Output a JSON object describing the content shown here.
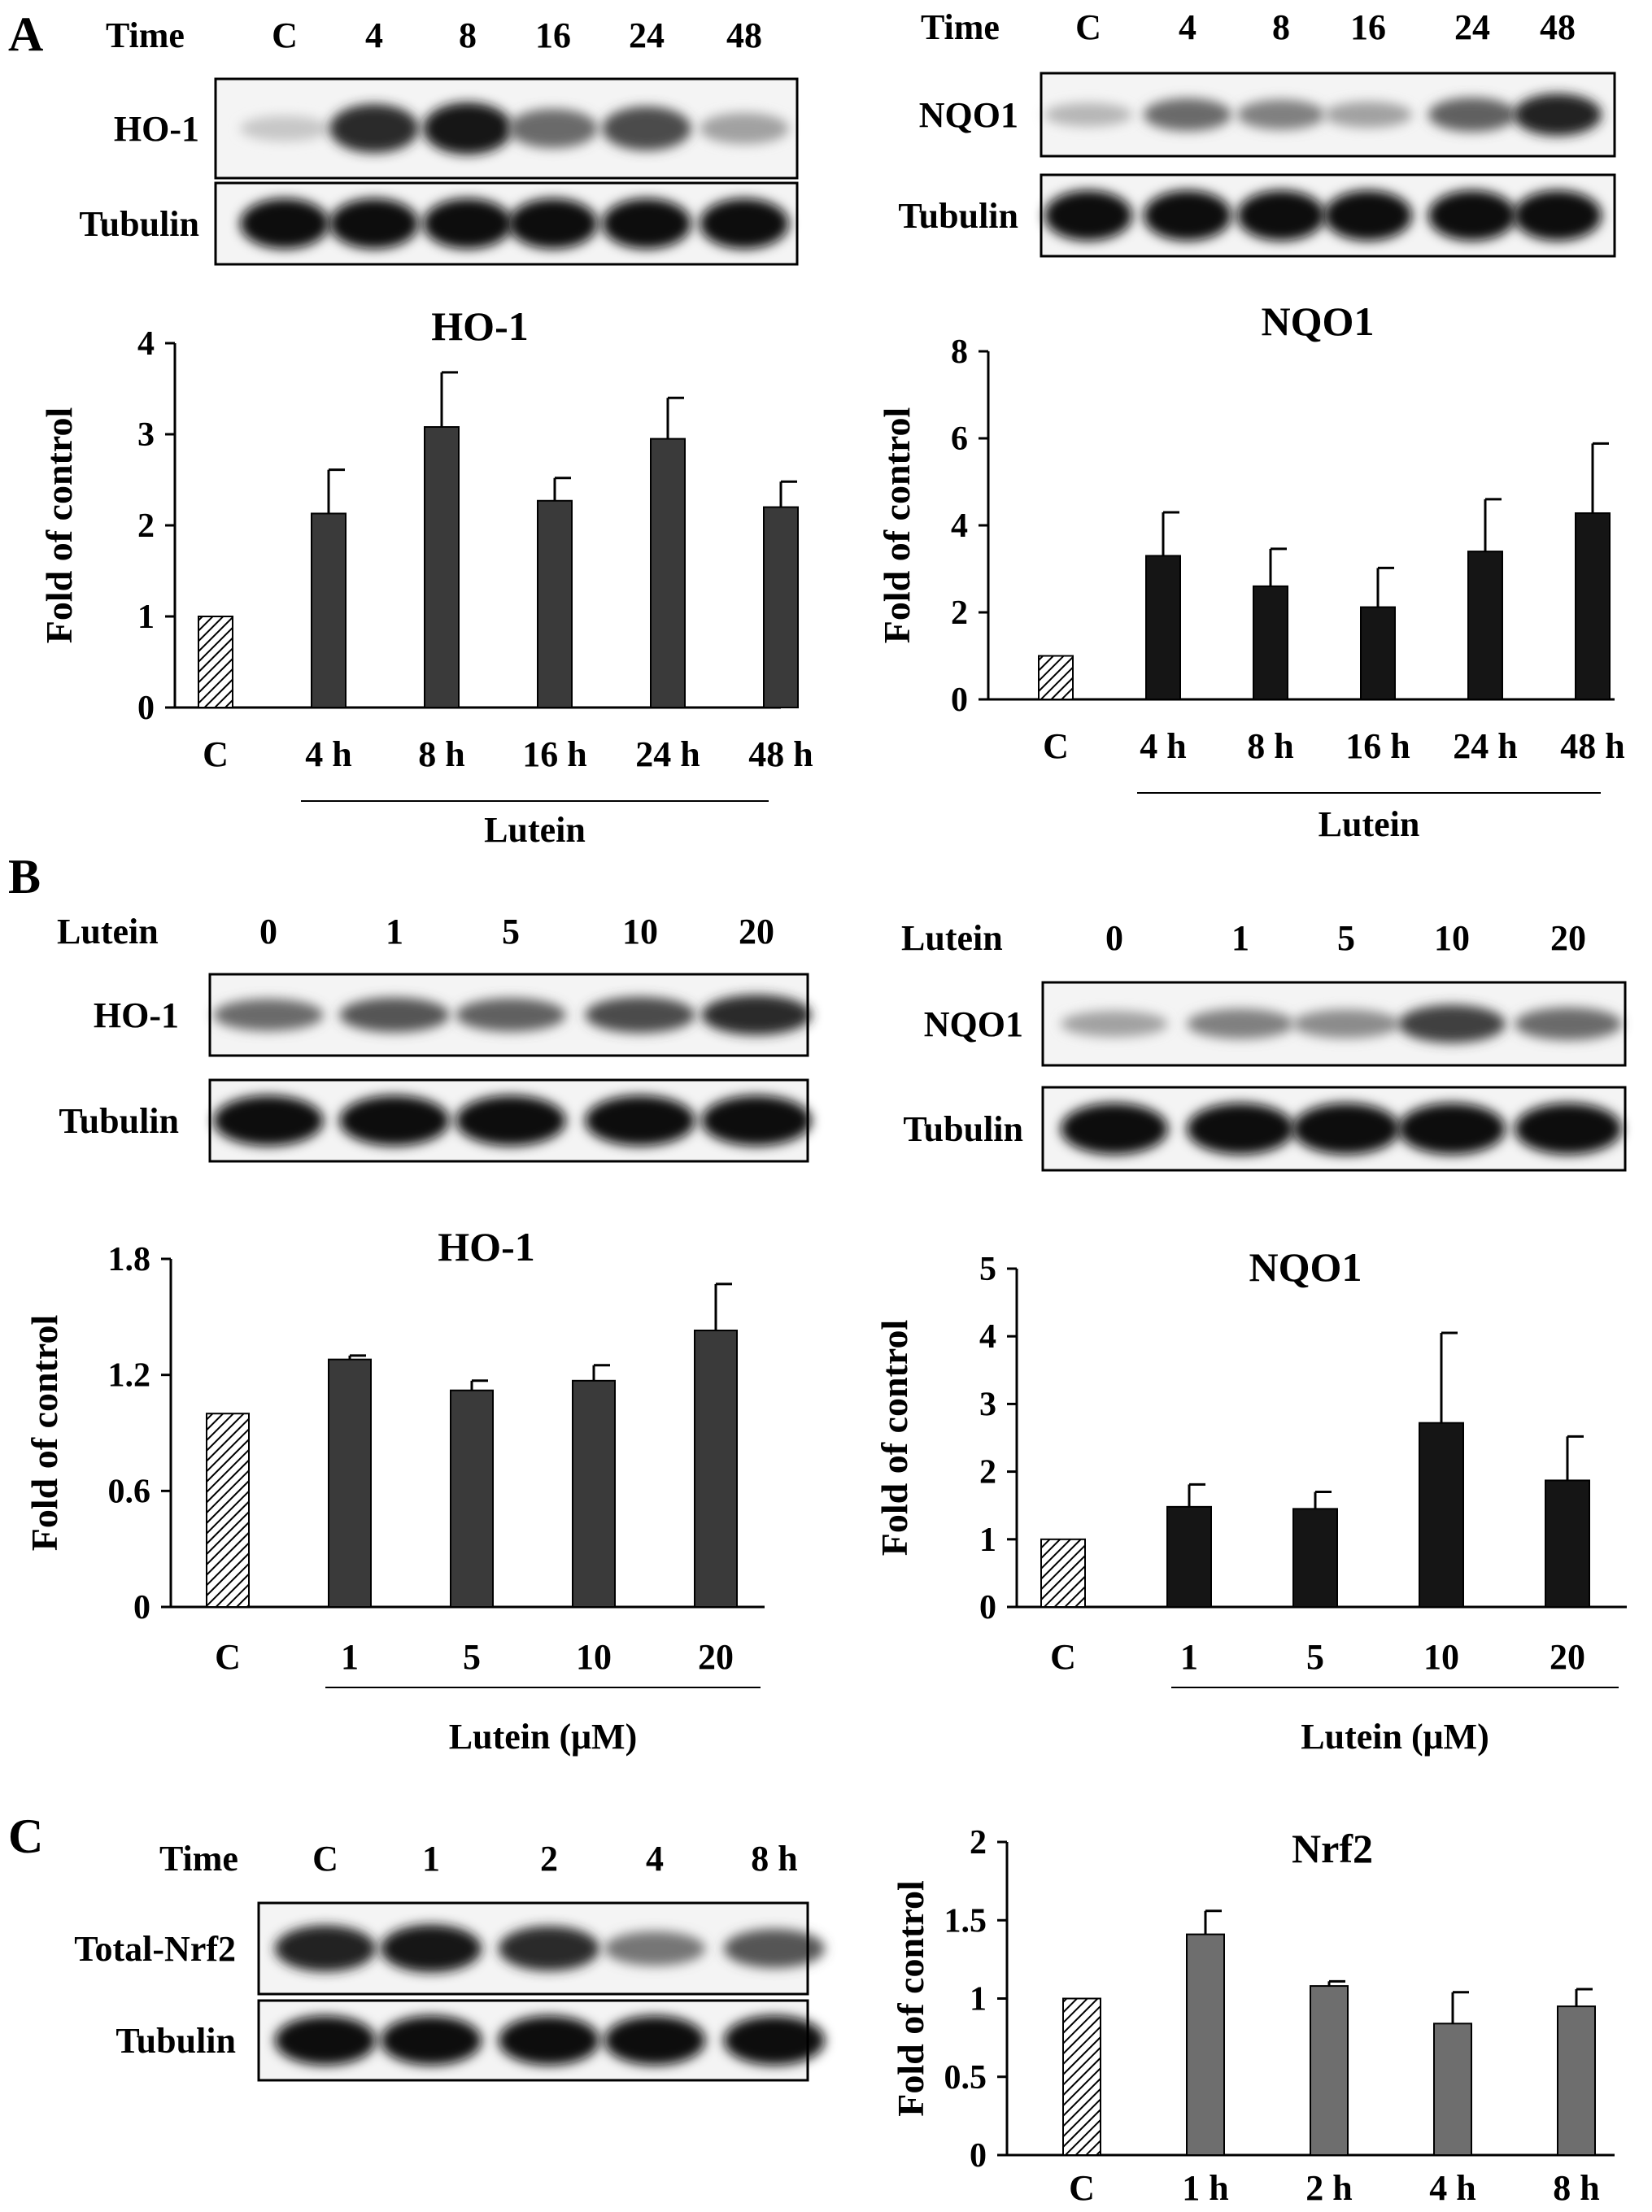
{
  "panels": {
    "A": {
      "label": "A",
      "left_blot": {
        "header_label": "Time",
        "lanes": [
          "C",
          "4",
          "8",
          "16",
          "24",
          "48"
        ],
        "rows": [
          {
            "label": "HO-1",
            "intensity": [
              0.12,
              0.85,
              0.95,
              0.55,
              0.7,
              0.3
            ]
          },
          {
            "label": "Tubulin",
            "intensity": [
              1,
              1,
              1,
              1,
              1,
              1
            ]
          }
        ]
      },
      "right_blot": {
        "header_label": "Time",
        "lanes": [
          "C",
          "4",
          "8",
          "16",
          "24",
          "48"
        ],
        "rows": [
          {
            "label": "NQO1",
            "intensity": [
              0.2,
              0.55,
              0.45,
              0.3,
              0.6,
              0.9
            ]
          },
          {
            "label": "Tubulin",
            "intensity": [
              1,
              1,
              1,
              1,
              1,
              1
            ]
          }
        ]
      }
    },
    "B": {
      "label": "B",
      "left_blot": {
        "header_label": "Lutein",
        "lanes": [
          "0",
          "1",
          "5",
          "10",
          "20"
        ],
        "rows": [
          {
            "label": "HO-1",
            "intensity": [
              0.55,
              0.65,
              0.6,
              0.7,
              0.85
            ]
          },
          {
            "label": "Tubulin",
            "intensity": [
              1,
              1,
              1,
              1,
              1
            ]
          }
        ]
      },
      "right_blot": {
        "header_label": "Lutein",
        "lanes": [
          "0",
          "1",
          "5",
          "10",
          "20"
        ],
        "rows": [
          {
            "label": "NQO1",
            "intensity": [
              0.3,
              0.45,
              0.4,
              0.75,
              0.55
            ]
          },
          {
            "label": "Tubulin",
            "intensity": [
              1,
              1,
              1,
              1,
              1
            ]
          }
        ]
      }
    },
    "C": {
      "label": "C",
      "blot": {
        "header_label": "Time",
        "lanes": [
          "C",
          "1",
          "2",
          "4",
          "8 h"
        ],
        "rows": [
          {
            "label": "Total-Nrf2",
            "intensity": [
              0.9,
              0.95,
              0.85,
              0.5,
              0.65
            ]
          },
          {
            "label": "Tubulin",
            "intensity": [
              1,
              1,
              1,
              1,
              1
            ]
          }
        ]
      }
    }
  },
  "colors": {
    "bar_dark": "#3a3a3a",
    "bar_black": "#151515",
    "bar_gray": "#6e6e6e",
    "control_hatch": "#000000",
    "axis": "#000000"
  },
  "chart_data": [
    {
      "id": "A-HO1",
      "type": "bar",
      "title": "HO-1",
      "ylabel": "Fold of control",
      "ylim": [
        0,
        4
      ],
      "yticks": [
        "0",
        "1",
        "2",
        "3",
        "4"
      ],
      "categories": [
        "C",
        "4 h",
        "8 h",
        "16 h",
        "24 h",
        "48 h"
      ],
      "group_label": "Lutein",
      "values": [
        1.0,
        2.13,
        3.08,
        2.27,
        2.95,
        2.2
      ],
      "errors": [
        0,
        0.48,
        0.6,
        0.25,
        0.45,
        0.28
      ],
      "control_hatched": true,
      "bar_color": "#3a3a3a"
    },
    {
      "id": "A-NQO1",
      "type": "bar",
      "title": "NQO1",
      "ylabel": "Fold of control",
      "ylim": [
        0,
        8
      ],
      "yticks": [
        "0",
        "2",
        "4",
        "6",
        "8"
      ],
      "categories": [
        "C",
        "4 h",
        "8 h",
        "16 h",
        "24 h",
        "48 h"
      ],
      "group_label": "Lutein",
      "values": [
        1.0,
        3.3,
        2.6,
        2.12,
        3.4,
        4.28
      ],
      "errors": [
        0,
        1.0,
        0.86,
        0.9,
        1.2,
        1.6
      ],
      "control_hatched": true,
      "bar_color": "#151515"
    },
    {
      "id": "B-HO1",
      "type": "bar",
      "title": "HO-1",
      "ylabel": "Fold of control",
      "ylim": [
        0,
        1.8
      ],
      "yticks": [
        "0",
        "0.6",
        "1.2",
        "1.8"
      ],
      "categories": [
        "C",
        "1",
        "5",
        "10",
        "20"
      ],
      "group_label": "Lutein  (μM)",
      "values": [
        1.0,
        1.28,
        1.12,
        1.17,
        1.43
      ],
      "errors": [
        0,
        0.02,
        0.05,
        0.08,
        0.24
      ],
      "control_hatched": true,
      "bar_color": "#3a3a3a"
    },
    {
      "id": "B-NQO1",
      "type": "bar",
      "title": "NQO1",
      "ylabel": "Fold of control",
      "ylim": [
        0,
        5
      ],
      "yticks": [
        "0",
        "1",
        "2",
        "3",
        "4",
        "5"
      ],
      "categories": [
        "C",
        "1",
        "5",
        "10",
        "20"
      ],
      "group_label": "Lutein  (μM)",
      "values": [
        1.0,
        1.48,
        1.45,
        2.72,
        1.87
      ],
      "errors": [
        0,
        0.33,
        0.25,
        1.33,
        0.65
      ],
      "control_hatched": true,
      "bar_color": "#151515"
    },
    {
      "id": "C-Nrf2",
      "type": "bar",
      "title": "Nrf2",
      "ylabel": "Fold of control",
      "ylim": [
        0,
        2
      ],
      "yticks": [
        "0",
        "0.5",
        "1",
        "1.5",
        "2"
      ],
      "categories": [
        "C",
        "1 h",
        "2 h",
        "4 h",
        "8 h"
      ],
      "group_label": "",
      "values": [
        1.0,
        1.41,
        1.08,
        0.84,
        0.95
      ],
      "errors": [
        0,
        0.15,
        0.03,
        0.2,
        0.11
      ],
      "control_hatched": true,
      "bar_color": "#6e6e6e"
    }
  ]
}
